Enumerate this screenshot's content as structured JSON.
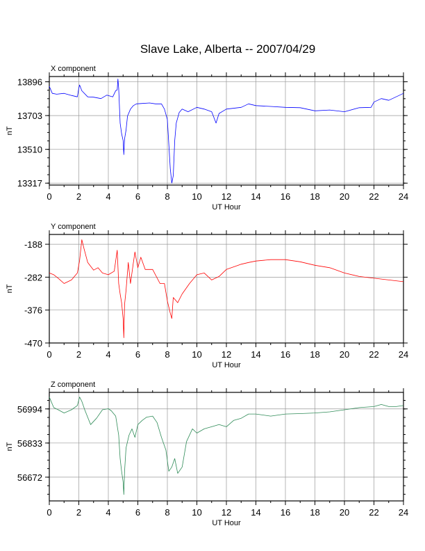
{
  "title": "Slave Lake, Alberta -- 2007/04/29",
  "chart_data": [
    {
      "type": "line",
      "title": "X component",
      "xlabel": "UT Hour",
      "ylabel": "nT",
      "xlim": [
        0,
        24
      ],
      "ylim": [
        13306,
        13926
      ],
      "xticks": [
        0,
        2,
        4,
        6,
        8,
        10,
        12,
        14,
        16,
        18,
        20,
        22,
        24
      ],
      "yticks": [
        13317,
        13510,
        13703,
        13896
      ],
      "grid": true,
      "series": [
        {
          "color": "#0000ff",
          "x": [
            0,
            0.2,
            0.5,
            1.0,
            1.5,
            1.9,
            2.0,
            2.05,
            2.2,
            2.6,
            3.0,
            3.5,
            3.9,
            4.3,
            4.5,
            4.6,
            4.65,
            4.7,
            4.8,
            4.9,
            5.0,
            5.05,
            5.1,
            5.2,
            5.3,
            5.5,
            5.7,
            5.9,
            6.3,
            6.8,
            7.2,
            7.6,
            7.8,
            8.0,
            8.1,
            8.2,
            8.3,
            8.4,
            8.5,
            8.6,
            8.8,
            9.0,
            9.4,
            10.0,
            10.5,
            11.0,
            11.3,
            11.5,
            12.0,
            13.0,
            13.5,
            14.0,
            15.0,
            16.0,
            17.0,
            18.0,
            19.0,
            20.0,
            21.0,
            21.8,
            22.0,
            22.5,
            23.0,
            23.5,
            24.0
          ],
          "y": [
            13870,
            13830,
            13825,
            13830,
            13818,
            13810,
            13860,
            13878,
            13845,
            13810,
            13808,
            13800,
            13820,
            13810,
            13845,
            13850,
            13912,
            13860,
            13660,
            13600,
            13560,
            13480,
            13570,
            13620,
            13700,
            13740,
            13760,
            13770,
            13772,
            13775,
            13770,
            13770,
            13740,
            13680,
            13540,
            13400,
            13317,
            13360,
            13560,
            13660,
            13720,
            13740,
            13725,
            13750,
            13740,
            13725,
            13660,
            13715,
            13740,
            13750,
            13770,
            13760,
            13755,
            13750,
            13748,
            13730,
            13735,
            13725,
            13748,
            13750,
            13780,
            13800,
            13790,
            13810,
            13830
          ]
        }
      ]
    },
    {
      "type": "line",
      "title": "Y component",
      "xlabel": "UT Hour",
      "ylabel": "nT",
      "xlim": [
        0,
        24
      ],
      "ylim": [
        -470,
        -160
      ],
      "xticks": [
        0,
        2,
        4,
        6,
        8,
        10,
        12,
        14,
        16,
        18,
        20,
        22,
        24
      ],
      "yticks": [
        -188,
        -282,
        -376,
        -470
      ],
      "grid": true,
      "series": [
        {
          "color": "#ff0000",
          "x": [
            0,
            0.3,
            0.6,
            1.0,
            1.5,
            1.9,
            2.05,
            2.2,
            2.35,
            2.6,
            3.0,
            3.3,
            3.6,
            4.0,
            4.4,
            4.6,
            4.7,
            4.8,
            4.9,
            5.0,
            5.05,
            5.1,
            5.2,
            5.35,
            5.5,
            5.7,
            5.8,
            6.0,
            6.2,
            6.5,
            7.0,
            7.5,
            7.8,
            8.0,
            8.2,
            8.3,
            8.4,
            8.7,
            9.0,
            9.5,
            10.0,
            10.5,
            11.0,
            11.5,
            12.0,
            13.0,
            13.5,
            14.0,
            15.0,
            16.0,
            17.0,
            18.0,
            19.0,
            20.0,
            21.0,
            22.0,
            23.0,
            24.0
          ],
          "y": [
            -270,
            -275,
            -285,
            -300,
            -290,
            -270,
            -235,
            -175,
            -200,
            -240,
            -262,
            -255,
            -270,
            -275,
            -265,
            -205,
            -300,
            -330,
            -355,
            -400,
            -455,
            -360,
            -320,
            -240,
            -300,
            -240,
            -210,
            -255,
            -225,
            -260,
            -260,
            -300,
            -300,
            -350,
            -385,
            -400,
            -340,
            -355,
            -330,
            -300,
            -275,
            -270,
            -290,
            -280,
            -260,
            -245,
            -240,
            -236,
            -232,
            -232,
            -238,
            -248,
            -255,
            -270,
            -280,
            -285,
            -290,
            -295
          ]
        }
      ]
    },
    {
      "type": "line",
      "title": "Z component",
      "xlabel": "UT Hour",
      "ylabel": "nT",
      "xlim": [
        0,
        24
      ],
      "ylim": [
        56560,
        57072
      ],
      "xticks": [
        0,
        2,
        4,
        6,
        8,
        10,
        12,
        14,
        16,
        18,
        20,
        22,
        24
      ],
      "yticks": [
        56672,
        56833,
        56994
      ],
      "grid": true,
      "series": [
        {
          "color": "#2e8b57",
          "x": [
            0,
            0.3,
            0.6,
            1.0,
            1.5,
            1.9,
            2.05,
            2.2,
            2.4,
            2.8,
            3.2,
            3.6,
            4.0,
            4.2,
            4.5,
            4.7,
            4.8,
            4.9,
            5.0,
            5.05,
            5.1,
            5.2,
            5.4,
            5.6,
            5.8,
            6.0,
            6.3,
            6.6,
            7.0,
            7.3,
            7.6,
            7.9,
            8.1,
            8.3,
            8.5,
            8.7,
            9.0,
            9.3,
            9.7,
            10.0,
            10.5,
            11.0,
            11.5,
            12.0,
            12.5,
            13.0,
            13.5,
            14.0,
            15.0,
            16.0,
            17.0,
            18.0,
            19.0,
            20.0,
            21.0,
            22.0,
            22.5,
            23.0,
            23.5,
            24.0
          ],
          "y": [
            57050,
            57000,
            56990,
            56975,
            56990,
            57010,
            57050,
            57030,
            56990,
            56920,
            56950,
            56990,
            56995,
            56985,
            56960,
            56870,
            56760,
            56700,
            56650,
            56590,
            56700,
            56810,
            56870,
            56900,
            56860,
            56920,
            56940,
            56955,
            56960,
            56930,
            56860,
            56800,
            56700,
            56720,
            56760,
            56690,
            56720,
            56840,
            56900,
            56880,
            56900,
            56910,
            56920,
            56910,
            56940,
            56950,
            56970,
            56970,
            56960,
            56970,
            56972,
            56975,
            56980,
            56990,
            57000,
            57005,
            57015,
            57005,
            57005,
            57010
          ]
        }
      ]
    }
  ]
}
